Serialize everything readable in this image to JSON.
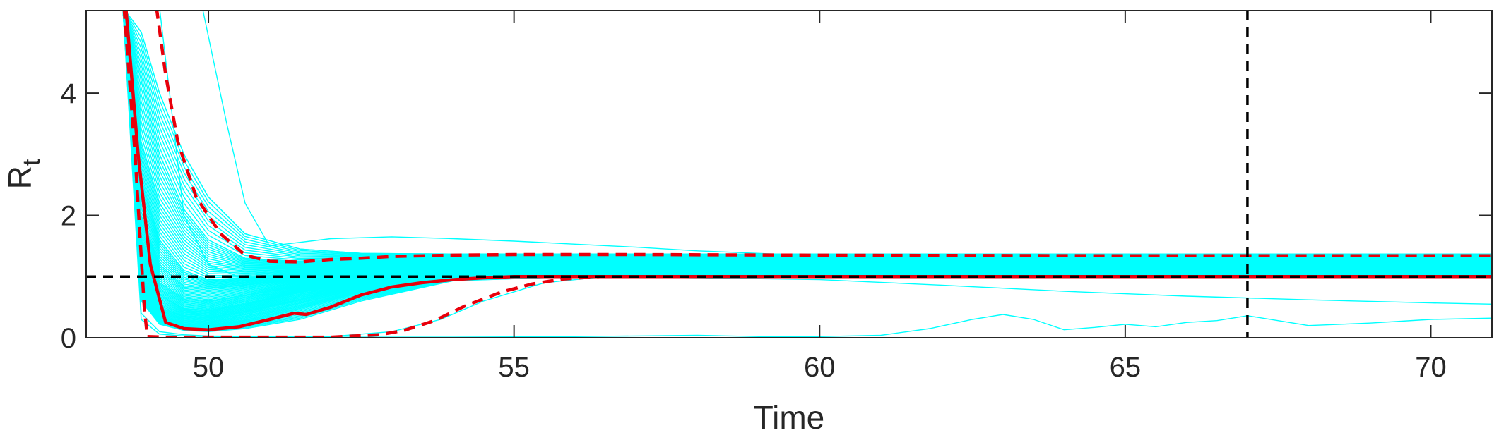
{
  "chart_data": {
    "type": "line",
    "xlabel": "Time",
    "ylabel": "R",
    "ylabel_subscript": "t",
    "xlim": [
      48,
      71
    ],
    "ylim": [
      0,
      5.35
    ],
    "xticks": [
      50,
      55,
      60,
      65,
      70
    ],
    "yticks": [
      0,
      2,
      4
    ],
    "grid": false,
    "reference_lines": [
      {
        "orientation": "horizontal",
        "value": 1,
        "style": "dashed",
        "color": "#000000"
      },
      {
        "orientation": "vertical",
        "value": 67,
        "style": "dashed",
        "color": "#000000"
      }
    ],
    "ensemble": {
      "color": "#00FFFF",
      "description_count": 100,
      "representative_series": [
        {
          "x": [
            48.6,
            48.9,
            49.2,
            49.6,
            50.0,
            50.6,
            51.5,
            52.5,
            54.0,
            56.0,
            60.0,
            65.0,
            71.0
          ],
          "y": [
            5.4,
            5.0,
            4.0,
            3.0,
            2.3,
            1.7,
            1.45,
            1.38,
            1.37,
            1.37,
            1.37,
            1.37,
            1.37
          ]
        },
        {
          "x": [
            48.6,
            48.9,
            49.2,
            49.6,
            50.0,
            50.6,
            51.5,
            52.5,
            54.0,
            56.0,
            60.0,
            65.0,
            71.0
          ],
          "y": [
            5.4,
            4.2,
            3.0,
            2.1,
            1.6,
            1.3,
            1.25,
            1.28,
            1.3,
            1.3,
            1.3,
            1.3,
            1.3
          ]
        },
        {
          "x": [
            48.6,
            48.9,
            49.2,
            49.6,
            50.0,
            50.6,
            51.5,
            52.5,
            54.0,
            56.0,
            60.0,
            65.0,
            71.0
          ],
          "y": [
            5.4,
            3.2,
            2.2,
            1.6,
            1.25,
            1.15,
            1.15,
            1.2,
            1.24,
            1.25,
            1.25,
            1.25,
            1.25
          ]
        },
        {
          "x": [
            48.6,
            48.9,
            49.2,
            49.6,
            50.0,
            50.6,
            51.5,
            52.5,
            54.0,
            56.0,
            60.0,
            65.0,
            71.0
          ],
          "y": [
            5.4,
            2.6,
            1.6,
            1.1,
            0.95,
            0.98,
            1.05,
            1.12,
            1.18,
            1.2,
            1.2,
            1.2,
            1.2
          ]
        },
        {
          "x": [
            48.6,
            48.9,
            49.2,
            49.6,
            50.0,
            50.6,
            51.5,
            52.5,
            54.0,
            56.0,
            60.0,
            65.0,
            71.0
          ],
          "y": [
            5.4,
            2.0,
            1.2,
            0.85,
            0.8,
            0.86,
            0.95,
            1.05,
            1.12,
            1.15,
            1.15,
            1.15,
            1.15
          ]
        },
        {
          "x": [
            48.6,
            48.9,
            49.2,
            49.6,
            50.0,
            50.6,
            51.5,
            52.5,
            54.0,
            56.0,
            60.0,
            65.0,
            71.0
          ],
          "y": [
            5.4,
            1.6,
            0.9,
            0.65,
            0.6,
            0.7,
            0.85,
            0.98,
            1.07,
            1.1,
            1.1,
            1.1,
            1.1
          ]
        },
        {
          "x": [
            48.6,
            48.9,
            49.2,
            49.6,
            50.0,
            50.6,
            51.5,
            52.5,
            54.0,
            56.0,
            60.0,
            65.0,
            71.0
          ],
          "y": [
            5.4,
            1.3,
            0.7,
            0.48,
            0.45,
            0.55,
            0.75,
            0.92,
            1.03,
            1.06,
            1.06,
            1.06,
            1.06
          ]
        },
        {
          "x": [
            48.6,
            48.9,
            49.2,
            49.6,
            50.0,
            50.6,
            51.5,
            52.5,
            54.0,
            56.0,
            60.0,
            65.0,
            71.0
          ],
          "y": [
            5.4,
            1.0,
            0.5,
            0.35,
            0.32,
            0.42,
            0.62,
            0.85,
            0.99,
            1.02,
            1.02,
            1.02,
            1.02
          ]
        },
        {
          "x": [
            48.6,
            48.9,
            49.2,
            49.6,
            50.0,
            50.6,
            51.5,
            52.5,
            54.0,
            56.0,
            60.0,
            65.0,
            71.0
          ],
          "y": [
            5.4,
            0.8,
            0.35,
            0.22,
            0.2,
            0.28,
            0.48,
            0.75,
            0.96,
            1.0,
            1.0,
            1.0,
            1.0
          ]
        },
        {
          "x": [
            48.6,
            48.9,
            49.2,
            49.6,
            50.0,
            50.6,
            51.5,
            52.5,
            54.0,
            56.0,
            60.0,
            65.0,
            71.0
          ],
          "y": [
            5.4,
            0.6,
            0.22,
            0.12,
            0.1,
            0.15,
            0.3,
            0.6,
            0.93,
            1.0,
            1.0,
            1.0,
            1.0
          ]
        },
        {
          "x": [
            48.6,
            48.9,
            49.2,
            49.6,
            50.0,
            51.0,
            52.0,
            53.0,
            53.8,
            54.5,
            55.5,
            56.5,
            57.5,
            60.0,
            65.0,
            71.0
          ],
          "y": [
            5.4,
            0.4,
            0.1,
            0.05,
            0.03,
            0.02,
            0.02,
            0.1,
            0.3,
            0.6,
            0.9,
            1.0,
            1.0,
            1.0,
            1.0,
            1.0
          ]
        },
        {
          "x": [
            49.9,
            50.3,
            50.6,
            51.0,
            52.0,
            53.0,
            54.0,
            55.0,
            56.0,
            57.0,
            58.0,
            59.0,
            60.0,
            61.0,
            62.0,
            63.0,
            64.0,
            65.0,
            66.0,
            67.0,
            68.0,
            69.0,
            70.0,
            71.0
          ],
          "y": [
            5.4,
            3.5,
            2.2,
            1.5,
            1.62,
            1.65,
            1.62,
            1.58,
            1.53,
            1.48,
            1.42,
            1.38,
            1.34,
            1.3,
            1.27,
            1.24,
            1.22,
            1.2,
            1.18,
            1.17,
            1.16,
            1.15,
            1.14,
            1.14
          ]
        },
        {
          "x": [
            49.2,
            49.6,
            50.0,
            50.6,
            51.5,
            52.5,
            54.0,
            56.0,
            58.0,
            60.0,
            62.0,
            64.0,
            66.0,
            68.0,
            70.0,
            71.0
          ],
          "y": [
            5.4,
            2.0,
            1.2,
            0.95,
            0.92,
            0.95,
            0.98,
            1.0,
            0.98,
            0.95,
            0.86,
            0.76,
            0.68,
            0.62,
            0.57,
            0.55
          ]
        },
        {
          "x": [
            48.6,
            48.9,
            49.2,
            49.6,
            50.0,
            51.0,
            52.0,
            54.0,
            56.0,
            58.0,
            59.0,
            60.0,
            61.0,
            61.8,
            62.5,
            63.0,
            63.5,
            64.0,
            64.5,
            65.0,
            65.5,
            66.0,
            66.5,
            67.0,
            67.5,
            68.0,
            69.0,
            70.0,
            71.0
          ],
          "y": [
            5.4,
            0.3,
            0.06,
            0.03,
            0.02,
            0.02,
            0.01,
            0.01,
            0.02,
            0.04,
            0.02,
            0.02,
            0.04,
            0.15,
            0.3,
            0.38,
            0.3,
            0.13,
            0.17,
            0.22,
            0.18,
            0.25,
            0.28,
            0.36,
            0.28,
            0.2,
            0.24,
            0.3,
            0.32
          ]
        }
      ]
    },
    "series": [
      {
        "role": "median",
        "color": "#E8000B",
        "style": "solid",
        "x": [
          48.65,
          48.85,
          49.05,
          49.3,
          49.6,
          50.0,
          50.5,
          51.0,
          51.4,
          51.6,
          52.0,
          52.5,
          53.0,
          53.5,
          54.0,
          54.5,
          55.0,
          56.0,
          58.0,
          60.0,
          65.0,
          71.0
        ],
        "y": [
          5.4,
          3.0,
          1.2,
          0.25,
          0.15,
          0.13,
          0.18,
          0.3,
          0.4,
          0.38,
          0.5,
          0.7,
          0.83,
          0.9,
          0.95,
          0.98,
          1.0,
          1.0,
          1.0,
          1.0,
          1.0,
          1.0
        ]
      },
      {
        "role": "upper_bound",
        "color": "#E8000B",
        "style": "dashed",
        "x": [
          49.15,
          49.3,
          49.5,
          49.8,
          50.2,
          50.6,
          51.0,
          51.5,
          52.0,
          52.5,
          53.0,
          54.0,
          55.0,
          57.0,
          60.0,
          65.0,
          71.0
        ],
        "y": [
          5.4,
          4.3,
          3.2,
          2.3,
          1.7,
          1.35,
          1.25,
          1.24,
          1.28,
          1.3,
          1.33,
          1.35,
          1.36,
          1.36,
          1.35,
          1.34,
          1.34
        ]
      },
      {
        "role": "lower_bound",
        "color": "#E8000B",
        "style": "dashed",
        "x": [
          48.62,
          48.8,
          48.95,
          49.0,
          49.3,
          50.0,
          51.0,
          52.0,
          52.8,
          53.2,
          53.7,
          54.2,
          54.8,
          55.3,
          55.8,
          56.4,
          57.0,
          60.0,
          65.0,
          71.0
        ],
        "y": [
          5.4,
          3.0,
          0.5,
          0.02,
          0.01,
          0.01,
          0.01,
          0.01,
          0.05,
          0.12,
          0.28,
          0.52,
          0.75,
          0.88,
          0.96,
          1.0,
          1.0,
          1.0,
          1.0,
          1.0
        ]
      }
    ]
  }
}
